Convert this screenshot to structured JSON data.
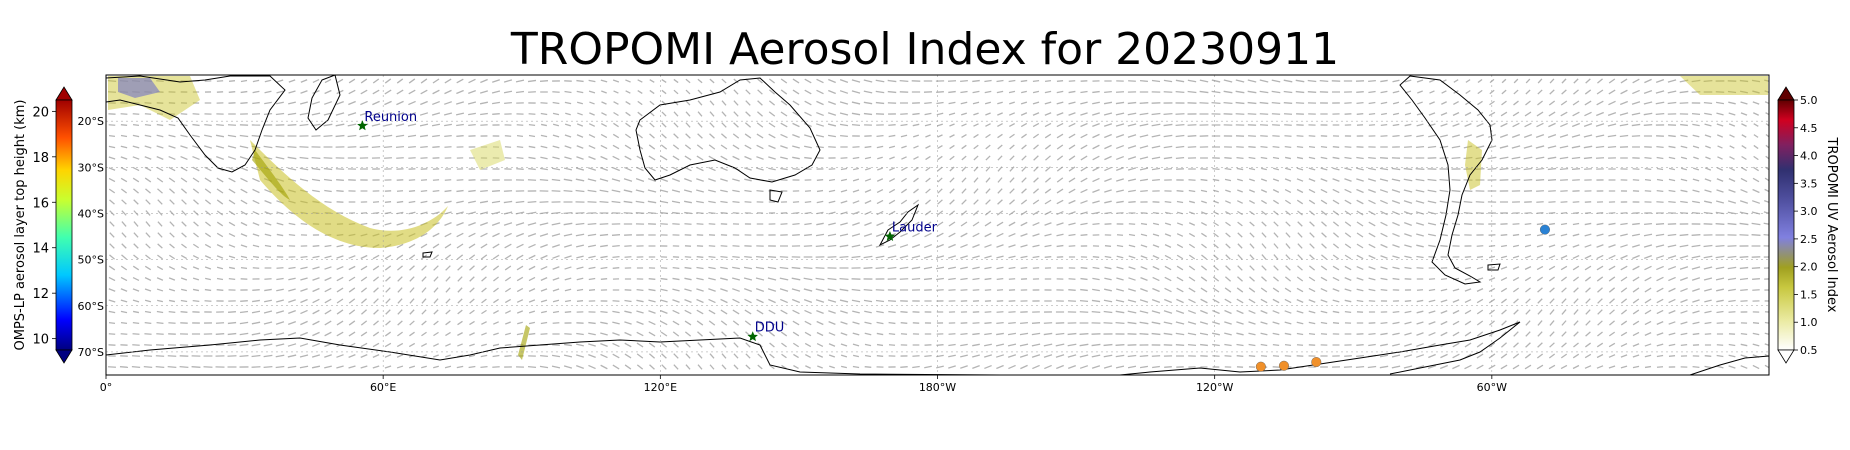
{
  "title": "TROPOMI Aerosol Index for 20230911",
  "chart_data": {
    "type": "map",
    "title": "TROPOMI Aerosol Index for 20230911",
    "x_ticks": [
      {
        "lon": 0,
        "label": "0°"
      },
      {
        "lon": 60,
        "label": "60°E"
      },
      {
        "lon": 120,
        "label": "120°E"
      },
      {
        "lon": 180,
        "label": "180°W"
      },
      {
        "lon": 240,
        "label": "120°W"
      },
      {
        "lon": 300,
        "label": "60°W"
      }
    ],
    "y_ticks": [
      {
        "lat": -20,
        "label": "20°S"
      },
      {
        "lat": -30,
        "label": "30°S"
      },
      {
        "lat": -40,
        "label": "40°S"
      },
      {
        "lat": -50,
        "label": "50°S"
      },
      {
        "lat": -60,
        "label": "60°S"
      },
      {
        "lat": -70,
        "label": "70°S"
      }
    ],
    "lon_range": [
      0,
      360
    ],
    "lat_range": [
      -75,
      -10
    ],
    "stations": [
      {
        "name": "Reunion",
        "lon": 55.5,
        "lat": -21
      },
      {
        "name": "Lauder",
        "lon": 169.7,
        "lat": -45
      },
      {
        "name": "DDU",
        "lon": 140,
        "lat": -66.7
      }
    ],
    "omps_points": [
      {
        "lon": 250,
        "lat": -73.2,
        "height_km": 16.5
      },
      {
        "lon": 255,
        "lat": -73,
        "height_km": 16.5
      },
      {
        "lon": 262,
        "lat": -72.2,
        "height_km": 16.5
      },
      {
        "lon": 311.5,
        "lat": -43.5,
        "height_km": 13.5
      }
    ],
    "left_colorbar": {
      "label": "OMPS-LP aerosol layer top height (km)",
      "min": 9.5,
      "max": 20.5,
      "ticks": [
        "10",
        "12",
        "14",
        "16",
        "18",
        "20"
      ],
      "extend": "both"
    },
    "right_colorbar": {
      "label": "TROPOMI UV Aerosol Index",
      "min": 0.5,
      "max": 5.0,
      "ticks": [
        "0.5",
        "1.0",
        "1.5",
        "2.0",
        "2.5",
        "3.0",
        "3.5",
        "4.0",
        "4.5",
        "5.0"
      ],
      "extend": "both"
    },
    "wind_vectors": "shown",
    "grid": true
  }
}
